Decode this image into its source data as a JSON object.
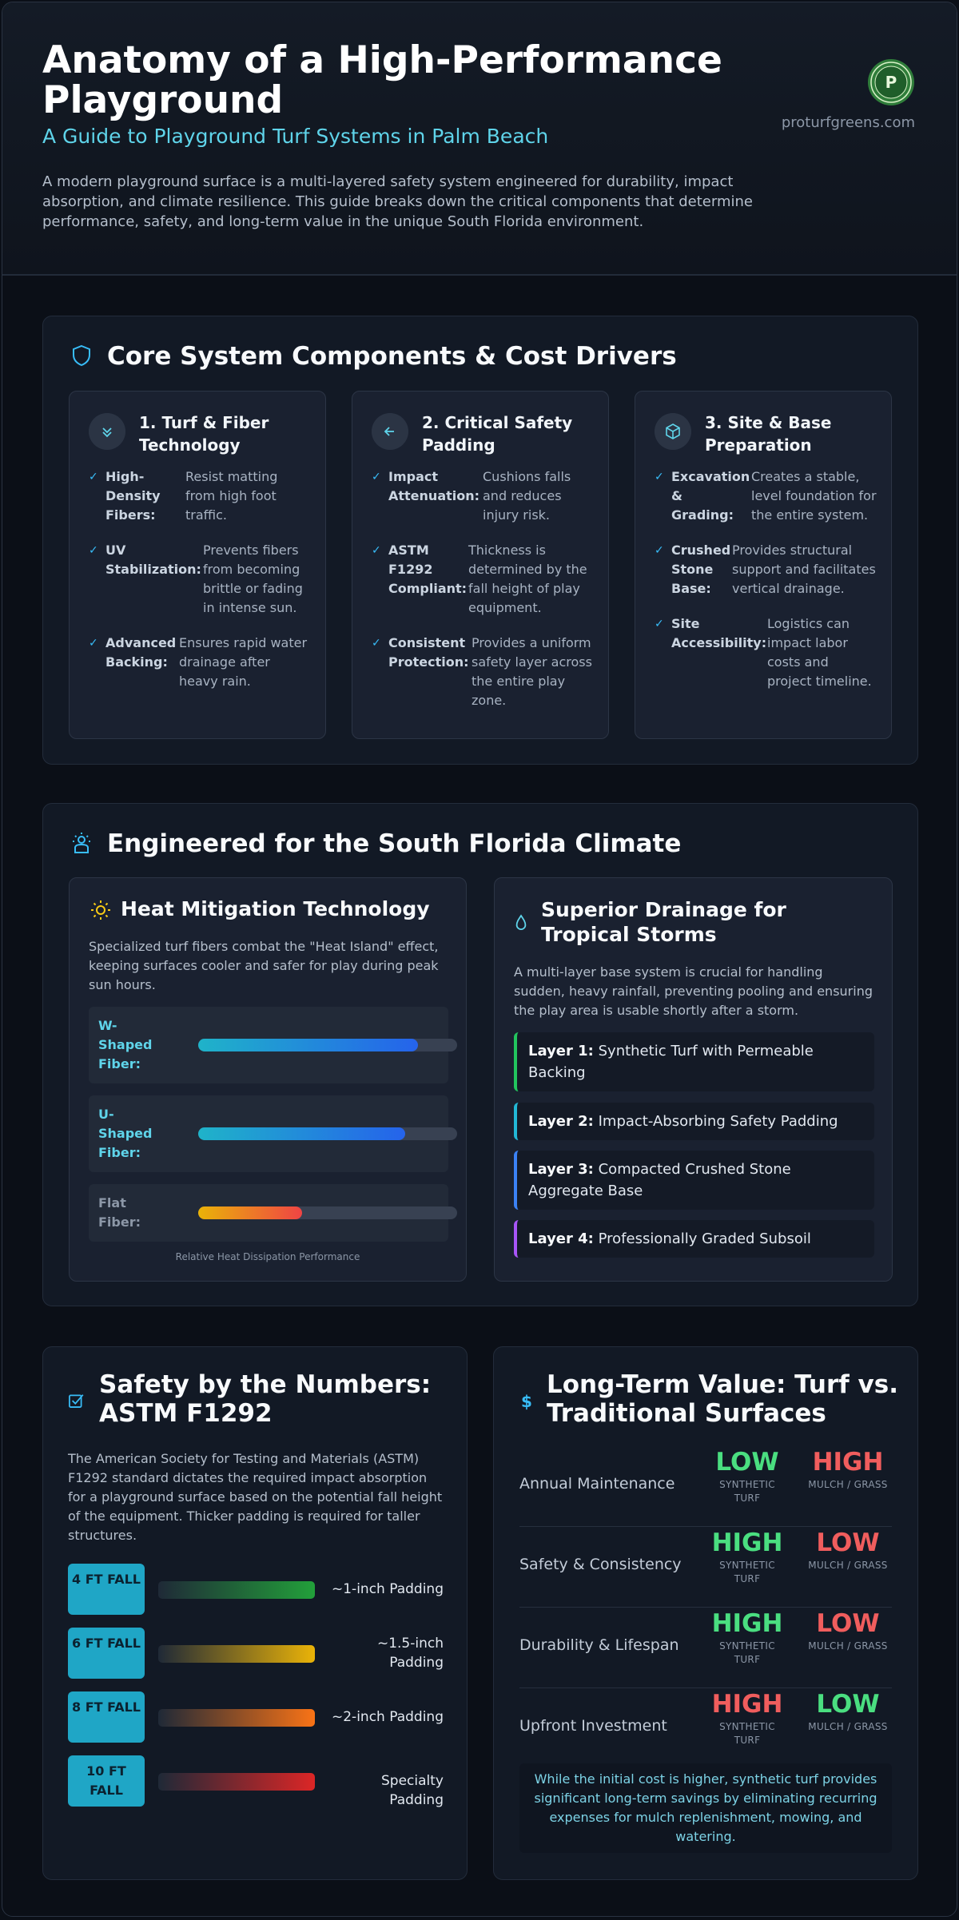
{
  "header": {
    "title": "Anatomy of a High-Performance Playground",
    "subtitle": "A Guide to Playground Turf Systems in Palm Beach",
    "intro": "A modern playground surface is a multi-layered safety system engineered for durability, impact absorption, and climate resilience. This guide breaks down the critical components that determine performance, safety, and long-term value in the unique South Florida environment.",
    "site": "proturfgreens.com",
    "logo_icon": "pg-logo-icon",
    "logo_letter": "P"
  },
  "components": {
    "title": "Core System Components & Cost Drivers",
    "icon": "shield-icon",
    "cards": [
      {
        "icon": "chevrons-down-icon",
        "title": "1. Turf & Fiber Technology",
        "items": [
          {
            "key": "High-Density Fibers:",
            "value": "Resist matting from high foot traffic."
          },
          {
            "key": "UV Stabilization:",
            "value": "Prevents fibers from becoming brittle or fading in intense sun."
          },
          {
            "key": "Advanced Backing:",
            "value": "Ensures rapid water drainage after heavy rain."
          }
        ]
      },
      {
        "icon": "arrow-left-icon",
        "title": "2. Critical Safety Padding",
        "items": [
          {
            "key": "Impact Attenuation:",
            "value": "Cushions falls and reduces injury risk."
          },
          {
            "key": "ASTM F1292 Compliant:",
            "value": "Thickness is determined by the fall height of play equipment."
          },
          {
            "key": "Consistent Protection:",
            "value": "Provides a uniform safety layer across the entire play zone."
          }
        ]
      },
      {
        "icon": "cube-icon",
        "title": "3. Site & Base Preparation",
        "items": [
          {
            "key": "Excavation & Grading:",
            "value": "Creates a stable, level foundation for the entire system."
          },
          {
            "key": "Crushed Stone Base:",
            "value": "Provides structural support and facilitates vertical drainage."
          },
          {
            "key": "Site Accessibility:",
            "value": "Logistics can impact labor costs and project timeline."
          }
        ]
      }
    ]
  },
  "climate": {
    "title": "Engineered for the South Florida Climate",
    "icon": "sun-person-icon",
    "heat": {
      "title": "Heat Mitigation Technology",
      "icon": "sun-icon",
      "text": "Specialized turf fibers combat the \"Heat Island\" effect, keeping surfaces cooler and safer for play during peak sun hours.",
      "fibers": [
        {
          "label": "W-Shaped Fiber:",
          "level": 0.85,
          "color": "#5fd4ea"
        },
        {
          "label": "U-Shaped Fiber:",
          "level": 0.8,
          "color": "#5fd4ea"
        },
        {
          "label": "Flat Fiber:",
          "level": 0.4,
          "color": "#8c97a7"
        }
      ],
      "caption": "Relative Heat Dissipation Performance"
    },
    "drainage": {
      "title": "Superior Drainage for Tropical Storms",
      "icon": "droplet-icon",
      "text": "A multi-layer base system is crucial for handling sudden, heavy rainfall, preventing pooling and ensuring the play area is usable shortly after a storm.",
      "layers": [
        {
          "key": "Layer 1:",
          "value": "Synthetic Turf with Permeable Backing",
          "color": "#22c55e"
        },
        {
          "key": "Layer 2:",
          "value": "Impact-Absorbing Safety Padding",
          "color": "#22b8d6"
        },
        {
          "key": "Layer 3:",
          "value": "Compacted Crushed Stone Aggregate Base",
          "color": "#3b82f6"
        },
        {
          "key": "Layer 4:",
          "value": "Professionally Graded Subsoil",
          "color": "#a855f7"
        }
      ]
    }
  },
  "safety": {
    "title": "Safety by the Numbers: ASTM F1292",
    "icon": "checkbox-icon",
    "text": "The American Society for Testing and Materials (ASTM) F1292 standard dictates the required impact absorption for a playground surface based on the potential fall height of the equipment. Thicker padding is required for taller structures.",
    "rows": [
      {
        "fall": "4 FT FALL",
        "padding": "~1-inch Padding",
        "color": "#22a03a"
      },
      {
        "fall": "6 FT FALL",
        "padding": "~1.5-inch Padding",
        "color": "#eab308"
      },
      {
        "fall": "8 FT FALL",
        "padding": "~2-inch Padding",
        "color": "#f97316"
      },
      {
        "fall": "10 FT FALL",
        "padding": "Specialty Padding",
        "color": "#dc2626"
      }
    ]
  },
  "value": {
    "title": "Long-Term Value: Turf vs. Traditional Surfaces",
    "icon": "dollar-icon",
    "turf_label": "SYNTHETIC TURF",
    "other_label": "MULCH / GRASS",
    "rows": [
      {
        "label": "Annual Maintenance",
        "turf": "LOW",
        "turf_good": true,
        "other": "HIGH",
        "other_good": false
      },
      {
        "label": "Safety & Consistency",
        "turf": "HIGH",
        "turf_good": true,
        "other": "LOW",
        "other_good": false
      },
      {
        "label": "Durability & Lifespan",
        "turf": "HIGH",
        "turf_good": true,
        "other": "LOW",
        "other_good": false
      },
      {
        "label": "Upfront Investment",
        "turf": "HIGH",
        "turf_good": false,
        "other": "LOW",
        "other_good": true
      }
    ],
    "note": "While the initial cost is higher, synthetic turf provides significant long-term savings by eliminating recurring expenses for mulch replenishment, mowing, and watering."
  }
}
